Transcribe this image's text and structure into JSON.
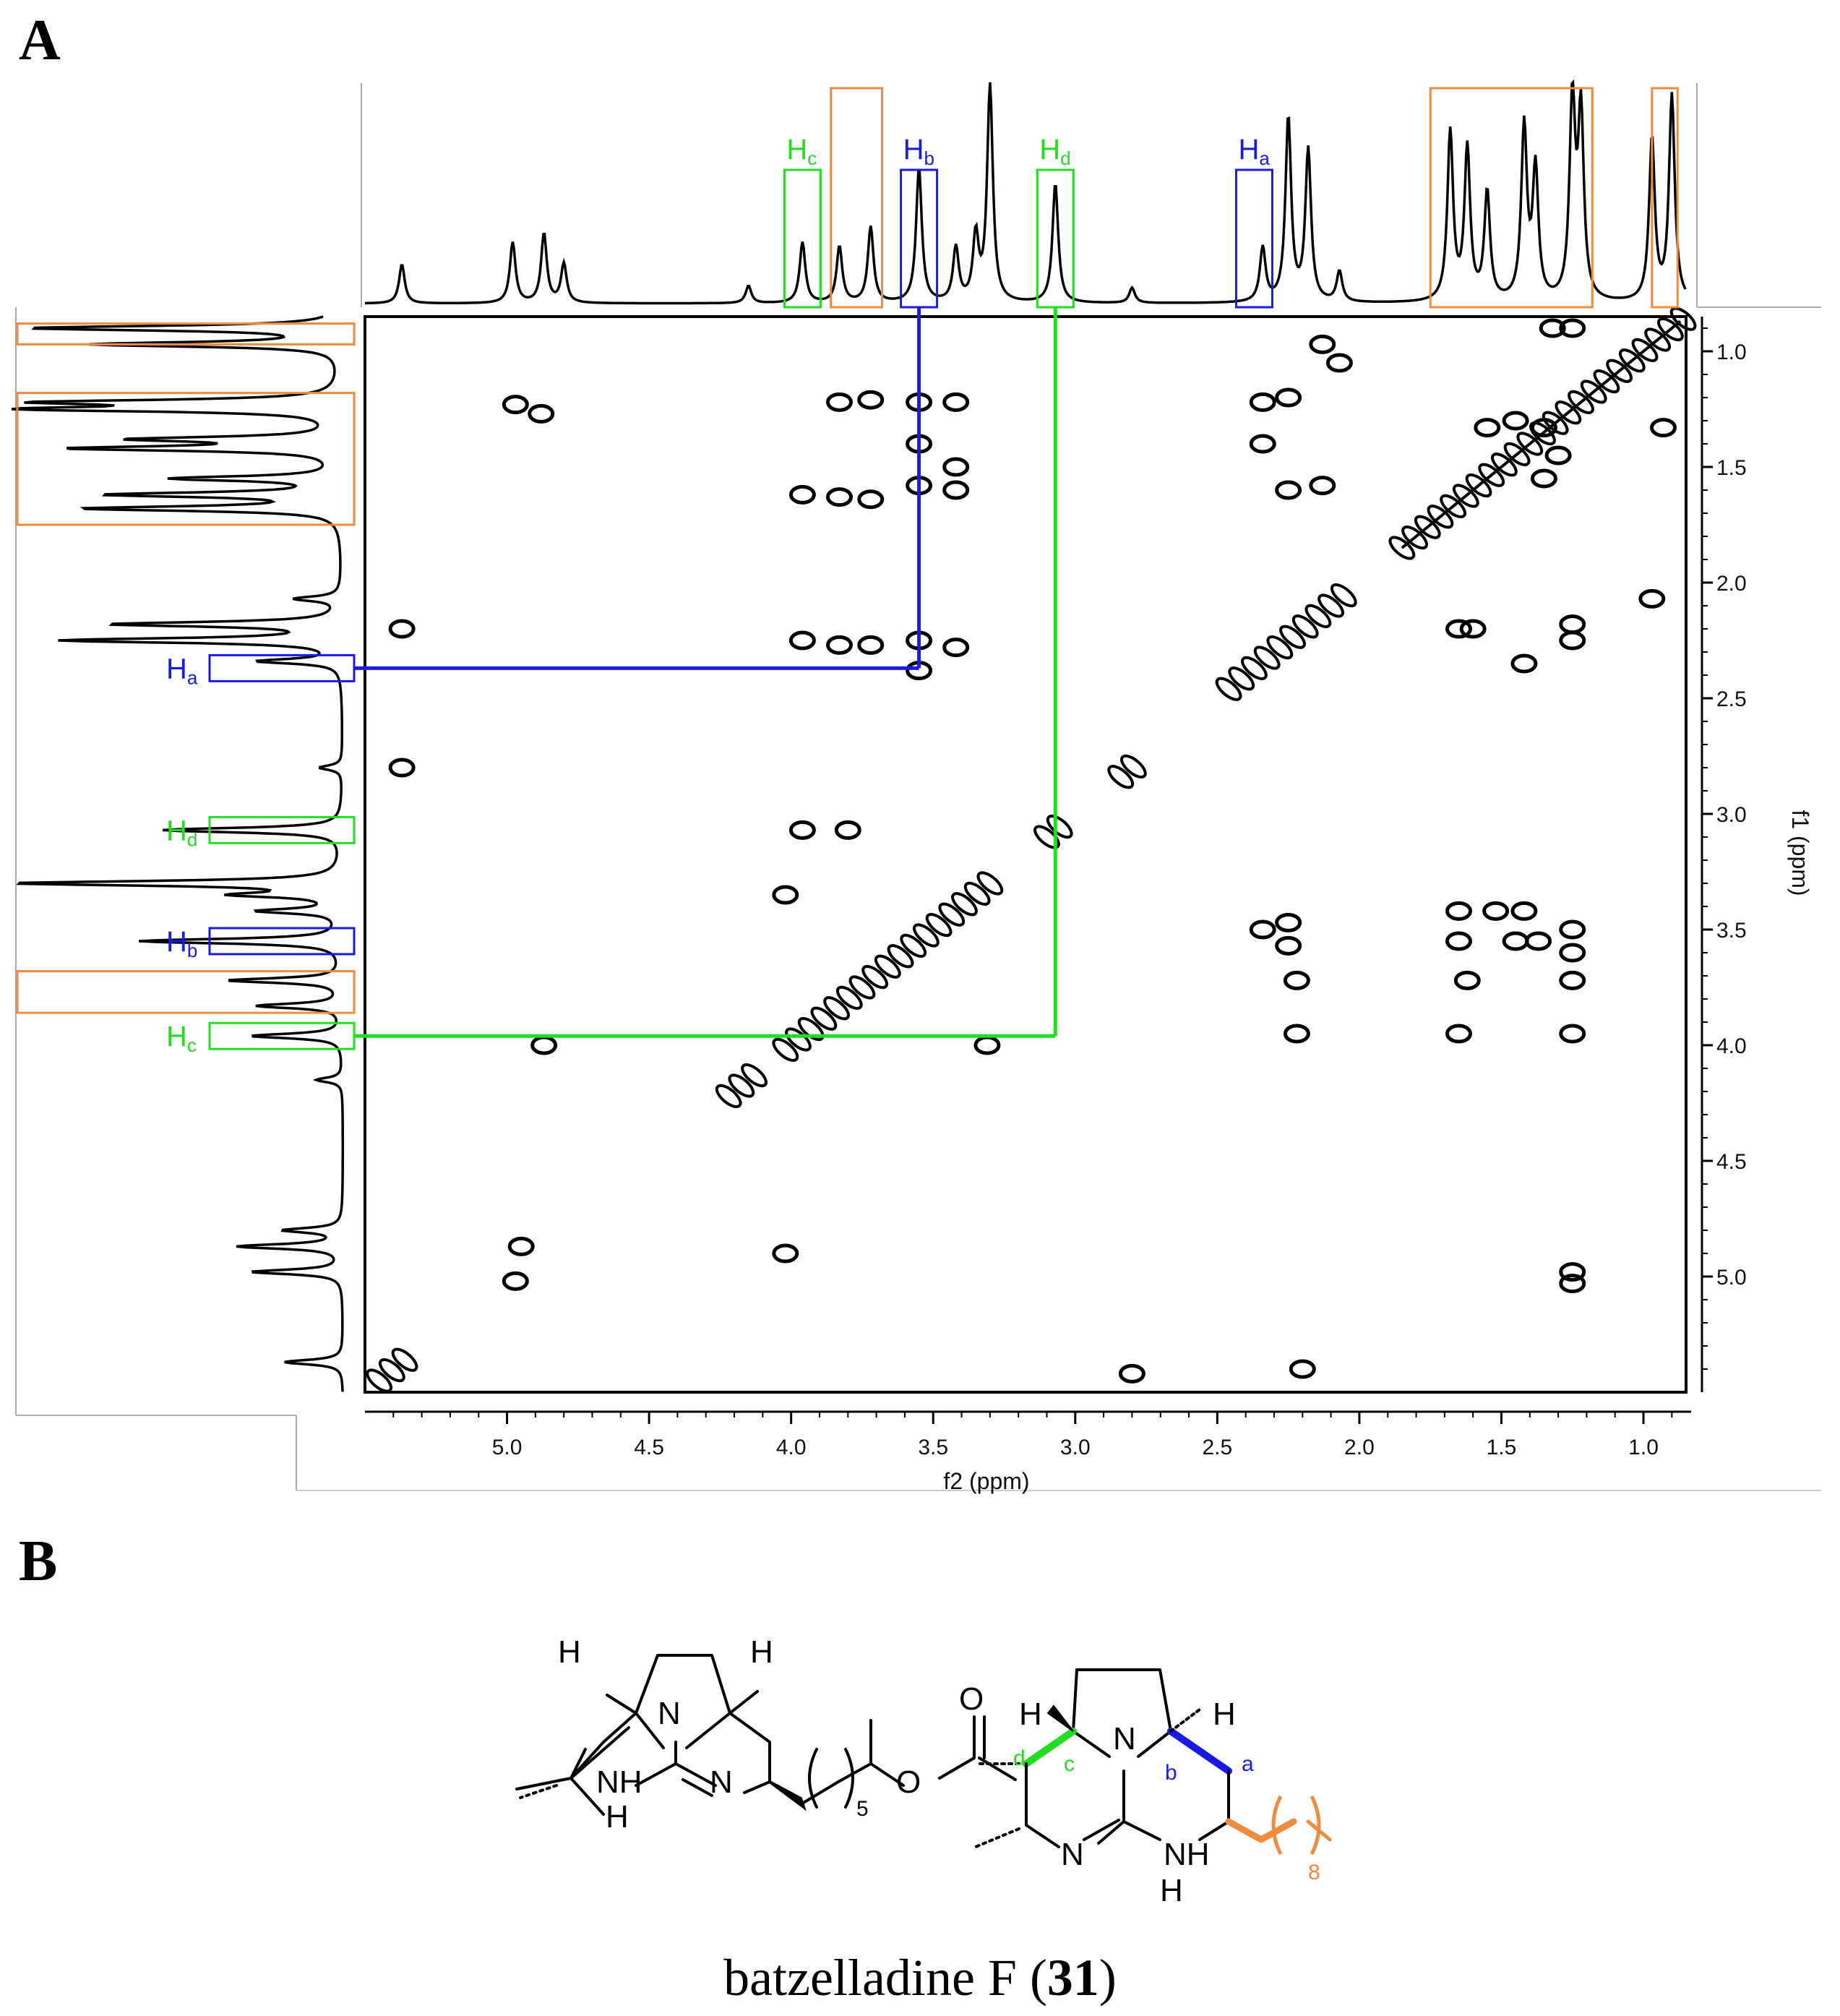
{
  "panels": {
    "a_letter": "A",
    "b_letter": "B"
  },
  "colors": {
    "blue": "#1a1ae6",
    "green": "#22dd22",
    "orange": "#f08a3c",
    "contour": "#000000"
  },
  "chart_data": {
    "type": "heatmap",
    "subtype": "2D COSY NMR spectrum",
    "title": "",
    "xlabel": "f2 (ppm)",
    "ylabel": "f1 (ppm)",
    "xlim": [
      5.5,
      0.85
    ],
    "ylim": [
      0.85,
      5.5
    ],
    "x_ticks": [
      5.0,
      4.5,
      4.0,
      3.5,
      3.0,
      2.5,
      2.0,
      1.5,
      1.0
    ],
    "x_tick_labels": [
      "5.0",
      "4.5",
      "4.0",
      "3.5",
      "3.0",
      "2.5",
      "2.0",
      "1.5",
      "1.0"
    ],
    "y_ticks": [
      1.0,
      1.5,
      2.0,
      2.5,
      3.0,
      3.5,
      4.0,
      4.5,
      5.0
    ],
    "y_tick_labels": [
      "1.0",
      "1.5",
      "2.0",
      "2.5",
      "3.0",
      "3.5",
      "4.0",
      "4.5",
      "5.0"
    ],
    "diagonal": [
      [
        5.45,
        5.45
      ],
      [
        0.87,
        0.87
      ]
    ],
    "cross_peaks": [
      [
        4.97,
        1.23
      ],
      [
        4.88,
        1.27
      ],
      [
        3.96,
        1.62
      ],
      [
        3.83,
        1.22
      ],
      [
        3.83,
        1.63
      ],
      [
        3.72,
        1.21
      ],
      [
        3.72,
        1.64
      ],
      [
        3.55,
        1.22
      ],
      [
        3.55,
        1.4
      ],
      [
        3.55,
        1.58
      ],
      [
        3.42,
        1.22
      ],
      [
        3.42,
        1.5
      ],
      [
        3.42,
        1.6
      ],
      [
        3.96,
        2.25
      ],
      [
        3.83,
        2.27
      ],
      [
        3.72,
        2.27
      ],
      [
        3.55,
        2.25
      ],
      [
        3.55,
        2.38
      ],
      [
        3.42,
        2.28
      ],
      [
        3.96,
        3.07
      ],
      [
        3.8,
        3.07
      ],
      [
        5.37,
        2.2
      ],
      [
        5.37,
        2.8
      ],
      [
        4.02,
        3.35
      ],
      [
        4.02,
        4.9
      ],
      [
        4.87,
        4.0
      ],
      [
        3.31,
        4.0
      ],
      [
        4.95,
        4.87
      ],
      [
        4.97,
        5.02
      ],
      [
        2.8,
        5.42
      ],
      [
        2.2,
        5.4
      ],
      [
        2.34,
        1.22
      ],
      [
        2.25,
        1.2
      ],
      [
        2.34,
        1.4
      ],
      [
        2.25,
        1.6
      ],
      [
        2.13,
        1.58
      ],
      [
        2.13,
        0.97
      ],
      [
        2.07,
        1.05
      ],
      [
        2.34,
        3.5
      ],
      [
        2.25,
        3.47
      ],
      [
        2.25,
        3.57
      ],
      [
        2.22,
        3.72
      ],
      [
        2.22,
        3.95
      ],
      [
        1.65,
        2.2
      ],
      [
        1.6,
        2.2
      ],
      [
        1.42,
        2.35
      ],
      [
        1.25,
        2.18
      ],
      [
        1.25,
        2.25
      ],
      [
        1.65,
        3.42
      ],
      [
        1.52,
        3.42
      ],
      [
        1.42,
        3.42
      ],
      [
        1.65,
        3.55
      ],
      [
        1.45,
        3.55
      ],
      [
        1.37,
        3.55
      ],
      [
        1.25,
        3.5
      ],
      [
        1.25,
        3.6
      ],
      [
        1.25,
        3.72
      ],
      [
        1.62,
        3.72
      ],
      [
        1.65,
        3.95
      ],
      [
        1.25,
        3.95
      ],
      [
        1.25,
        4.98
      ],
      [
        1.25,
        5.03
      ],
      [
        1.32,
        0.9
      ],
      [
        1.25,
        0.9
      ],
      [
        1.55,
        1.33
      ],
      [
        1.45,
        1.3
      ],
      [
        1.35,
        1.33
      ],
      [
        1.3,
        1.45
      ],
      [
        1.35,
        1.55
      ],
      [
        0.93,
        1.33
      ],
      [
        0.97,
        2.07
      ]
    ],
    "top_spectrum_peaks": [
      [
        5.37,
        0.18
      ],
      [
        4.98,
        0.28
      ],
      [
        4.87,
        0.32
      ],
      [
        4.8,
        0.18
      ],
      [
        4.15,
        0.08
      ],
      [
        3.96,
        0.28
      ],
      [
        3.83,
        0.26
      ],
      [
        3.72,
        0.35
      ],
      [
        3.55,
        0.62
      ],
      [
        3.42,
        0.25
      ],
      [
        3.35,
        0.3
      ],
      [
        3.3,
        1.0
      ],
      [
        3.07,
        0.55
      ],
      [
        2.8,
        0.07
      ],
      [
        2.34,
        0.25
      ],
      [
        2.25,
        0.85
      ],
      [
        2.18,
        0.7
      ],
      [
        2.07,
        0.14
      ],
      [
        1.68,
        0.78
      ],
      [
        1.62,
        0.7
      ],
      [
        1.55,
        0.5
      ],
      [
        1.42,
        0.8
      ],
      [
        1.38,
        0.6
      ],
      [
        1.25,
        0.92
      ],
      [
        1.22,
        0.85
      ],
      [
        0.97,
        0.75
      ],
      [
        0.9,
        0.95
      ]
    ],
    "annotations": {
      "Ha": {
        "label": "H",
        "sub": "a",
        "shift": 2.37,
        "color": "blue"
      },
      "Hb": {
        "label": "H",
        "sub": "b",
        "shift": 3.55,
        "color": "blue"
      },
      "Hc": {
        "label": "H",
        "sub": "c",
        "shift": 3.96,
        "color": "green"
      },
      "Hd": {
        "label": "H",
        "sub": "d",
        "shift": 3.07,
        "color": "green"
      },
      "orange_ranges": [
        [
          3.86,
          3.68
        ],
        [
          1.75,
          1.18
        ],
        [
          0.97,
          0.88
        ]
      ],
      "correlations": [
        {
          "from": "Ha",
          "to": "Hb",
          "f2": 3.55,
          "f1": 2.37,
          "color": "blue"
        },
        {
          "from": "Hc",
          "to": "Hd",
          "f2": 3.07,
          "f1": 3.96,
          "color": "green"
        }
      ]
    }
  },
  "molecule": {
    "caption_name": "batzelladine F (",
    "caption_number": "31",
    "caption_close": ")",
    "atoms": {
      "H": "H",
      "N": "N",
      "NH": "NH",
      "O": "O",
      "repeat_5": "5",
      "repeat_8": "8"
    },
    "position_labels": {
      "a": "a",
      "b": "b",
      "c": "c",
      "d": "d"
    }
  }
}
